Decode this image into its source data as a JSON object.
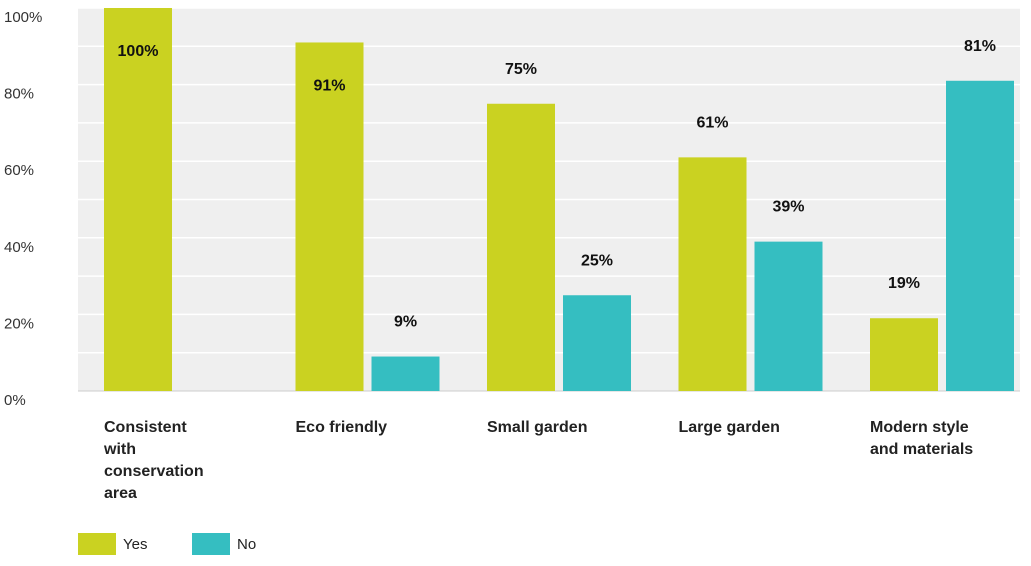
{
  "chart_data": {
    "type": "bar",
    "categories": [
      [
        "Consistent",
        "with",
        "conservation",
        "area"
      ],
      [
        "Eco friendly"
      ],
      [
        "Small garden"
      ],
      [
        "Large garden"
      ],
      [
        "Modern style",
        "and materials"
      ]
    ],
    "series": [
      {
        "name": "Yes",
        "color": "#cad221",
        "values": [
          100,
          91,
          75,
          61,
          19
        ],
        "labels": [
          "100%",
          "91%",
          "75%",
          "61%",
          "19%"
        ]
      },
      {
        "name": "No",
        "color": "#35bec1",
        "values": [
          0,
          9,
          25,
          39,
          81
        ],
        "labels": [
          "",
          "9%",
          "25%",
          "39%",
          "81%"
        ]
      }
    ],
    "y_ticks": [
      "0%",
      "20%",
      "40%",
      "60%",
      "80%",
      "100%"
    ],
    "y_tick_values": [
      0,
      20,
      40,
      60,
      80,
      100
    ],
    "ylim": [
      0,
      100
    ],
    "grid": true,
    "legend_position": "bottom-left",
    "title": "",
    "xlabel": "",
    "ylabel": "",
    "plot_background": "#efefef",
    "grid_color": "#ffffff"
  }
}
